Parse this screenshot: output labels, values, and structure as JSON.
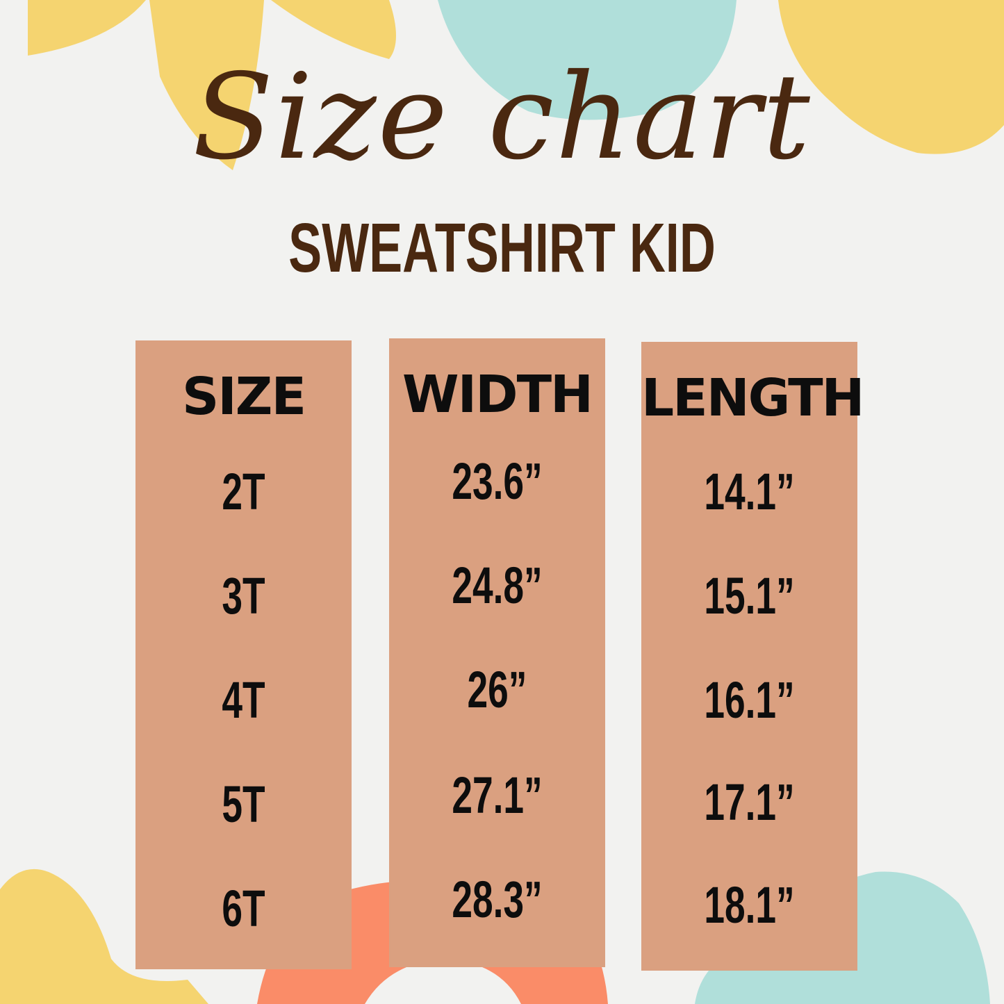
{
  "title": "Size chart",
  "subtitle": "SWEATSHIRT KID",
  "colors": {
    "background": "#f2f2f0",
    "column": "#daa080",
    "text": "#4a2810",
    "yellow": "#f5d470",
    "teal": "#b0dfda",
    "orange": "#fa8c68"
  },
  "table": {
    "columns": [
      {
        "header": "SIZE",
        "values": [
          "2T",
          "3T",
          "4T",
          "5T",
          "6T"
        ]
      },
      {
        "header": "WIDTH",
        "values": [
          "23.6”",
          "24.8”",
          "26”",
          "27.1”",
          "28.3”"
        ]
      },
      {
        "header": "LENGTH",
        "values": [
          "14.1”",
          "15.1”",
          "16.1”",
          "17.1”",
          "18.1”"
        ]
      }
    ]
  }
}
